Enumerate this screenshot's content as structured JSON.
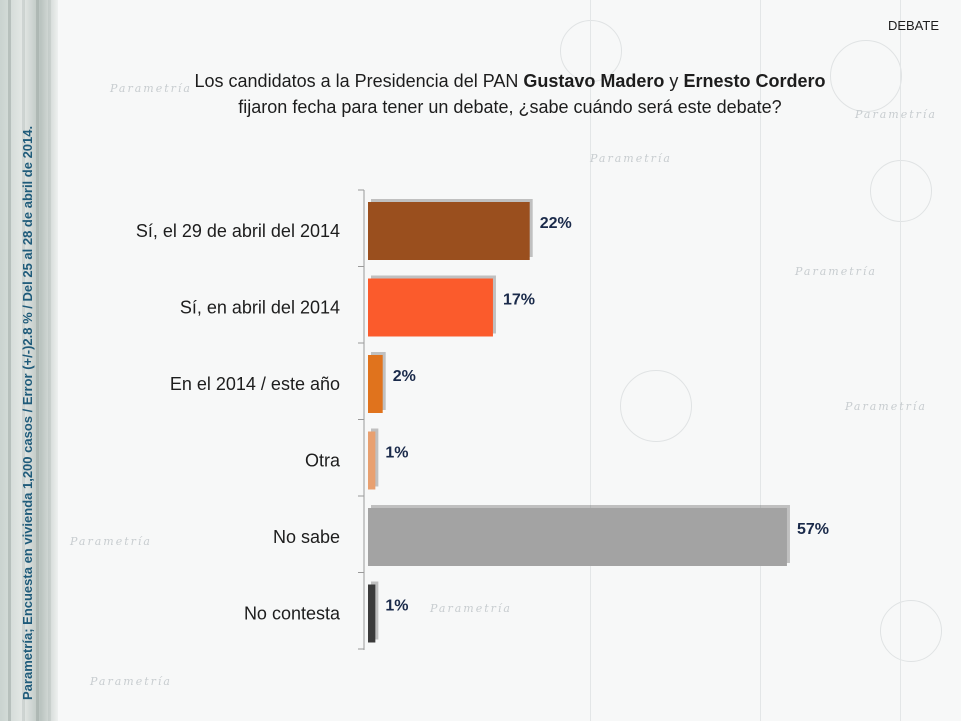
{
  "header": {
    "tag": "DEBATE"
  },
  "title": {
    "part1": "Los candidatos a la Presidencia del PAN ",
    "name1": "Gustavo Madero",
    "conj": " y ",
    "name2": "Ernesto Cordero",
    "line2": "fijaron fecha para tener un debate, ¿sabe cuándo será este debate?"
  },
  "side_note": "Parametría; Encuesta en vivienda 1,200 casos / Error (+/-)2.8 % / Del 25 al 28 de abril de 2014.",
  "watermark": "Parametría",
  "chart_data": {
    "type": "bar",
    "orientation": "horizontal",
    "categories": [
      "Sí, el 29 de abril del 2014",
      "Sí, en abril del 2014",
      "En el 2014 / este año",
      "Otra",
      "No sabe",
      "No contesta"
    ],
    "values": [
      22,
      17,
      2,
      1,
      57,
      1
    ],
    "value_labels": [
      "22%",
      "17%",
      "2%",
      "1%",
      "57%",
      "1%"
    ],
    "colors": [
      "#9a4f1e",
      "#fb5b2c",
      "#e0731d",
      "#e8a070",
      "#a3a3a3",
      "#3b3b3b"
    ],
    "xlim": [
      0,
      60
    ]
  }
}
